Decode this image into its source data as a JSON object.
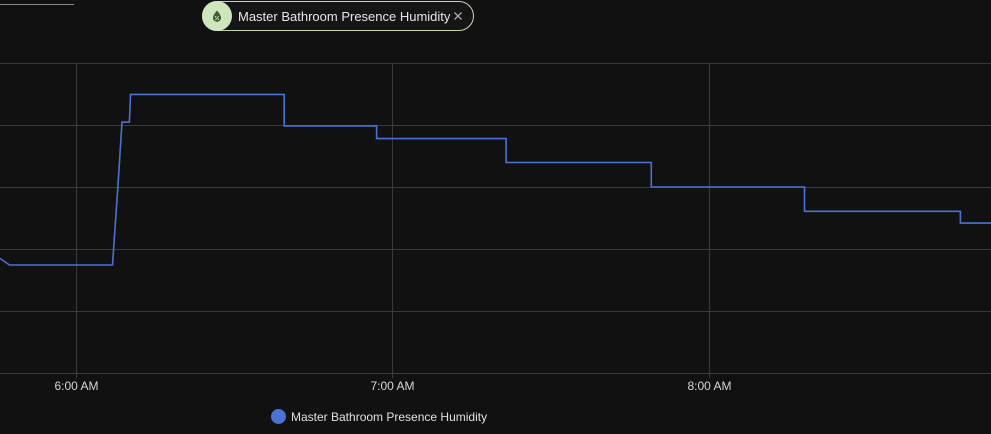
{
  "entity_chip": {
    "label": "Master Bathroom Presence Humidity",
    "icon": "water-percent-icon",
    "close_icon": "close-icon"
  },
  "colors": {
    "background": "#111111",
    "grid": "#3a3a3a",
    "line": "#4a72d4",
    "chip_avatar": "#cde6bd"
  },
  "chart_data": {
    "type": "line",
    "step": true,
    "grid": true,
    "legend_position": "bottom",
    "x_ticks": [
      "6:00 AM",
      "7:00 AM",
      "8:00 AM"
    ],
    "x_tick_values": [
      0,
      60,
      120
    ],
    "x_range": [
      -14.3,
      173.3
    ],
    "y_range": [
      0,
      1
    ],
    "y_ticks_shown": false,
    "series": [
      {
        "name": "Master Bathroom Presence Humidity",
        "points": [
          [
            -14.3,
            0.263
          ],
          [
            -12.5,
            0.233
          ],
          [
            7.0,
            0.233
          ],
          [
            8.0,
            0.578
          ],
          [
            8.8,
            0.874
          ],
          [
            10.2,
            0.874
          ],
          [
            10.4,
            0.998
          ],
          [
            39.5,
            0.998
          ],
          [
            39.5,
            0.857
          ],
          [
            57.0,
            0.857
          ],
          [
            57.0,
            0.8
          ],
          [
            81.5,
            0.8
          ],
          [
            81.5,
            0.693
          ],
          [
            109.0,
            0.693
          ],
          [
            109.0,
            0.583
          ],
          [
            138.0,
            0.583
          ],
          [
            138.0,
            0.474
          ],
          [
            167.5,
            0.474
          ],
          [
            167.5,
            0.421
          ],
          [
            173.3,
            0.421
          ]
        ]
      }
    ]
  },
  "legend": {
    "label": "Master Bathroom Presence Humidity"
  }
}
